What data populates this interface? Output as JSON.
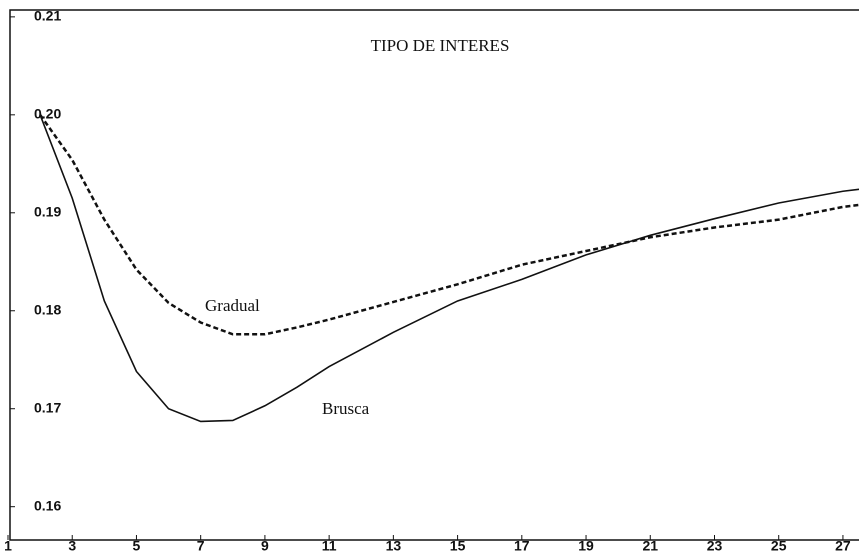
{
  "chart_data": {
    "type": "line",
    "title": "TIPO DE INTERES",
    "annotations": [
      "Gradual",
      "Brusca"
    ],
    "x": [
      2,
      3,
      4,
      5,
      6,
      7,
      8,
      9,
      10,
      11,
      13,
      15,
      17,
      19,
      21,
      23,
      25,
      27,
      27.5
    ],
    "series": [
      {
        "name": "Brusca",
        "color": "#111111",
        "dash": false,
        "values": [
          0.2,
          0.1915,
          0.181,
          0.1738,
          0.17,
          0.1687,
          0.1688,
          0.1703,
          0.1722,
          0.1743,
          0.1778,
          0.181,
          0.1832,
          0.1857,
          0.1877,
          0.1894,
          0.191,
          0.1922,
          0.1924
        ]
      },
      {
        "name": "Gradual",
        "color": "#111111",
        "dash": true,
        "values": [
          0.2,
          0.1954,
          0.1893,
          0.1842,
          0.1808,
          0.1788,
          0.1776,
          0.1776,
          0.1783,
          0.1791,
          0.1809,
          0.1827,
          0.1847,
          0.1861,
          0.1875,
          0.1885,
          0.1893,
          0.1906,
          0.1908
        ]
      }
    ],
    "xlim": [
      1,
      27.5
    ],
    "xticks": [
      1,
      3,
      5,
      7,
      9,
      11,
      13,
      15,
      17,
      19,
      21,
      23,
      25,
      27
    ],
    "ylim": [
      0.1566,
      0.2107
    ],
    "yticks": [
      0.16,
      0.17,
      0.18,
      0.19,
      {
        "value": 0.2,
        "label": "0.20"
      },
      0.21
    ],
    "grid": false
  }
}
